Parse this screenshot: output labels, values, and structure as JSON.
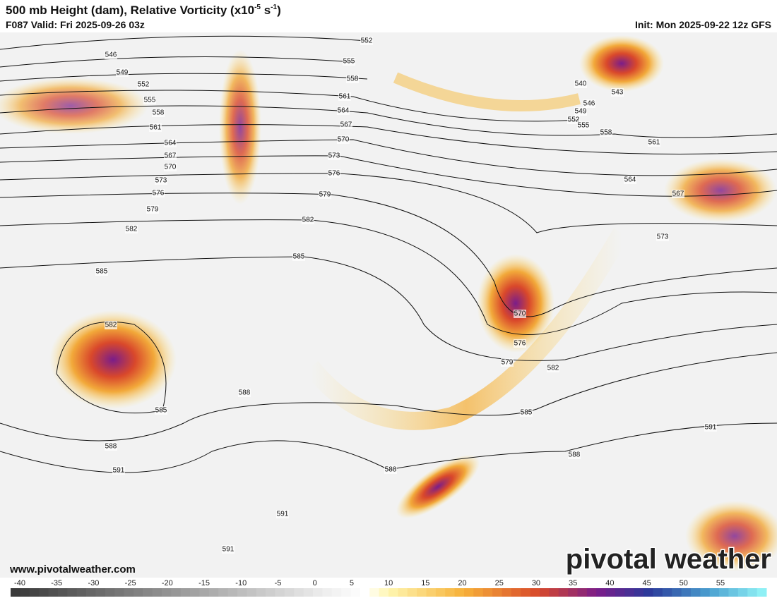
{
  "header": {
    "title": "500 mb Height (dam), Relative Vorticity (x10",
    "title_exp1": "-5",
    "title_mid": " s",
    "title_exp2": "-1",
    "title_end": ")",
    "valid": "F087 Valid: Fri 2025-09-26 03z",
    "init": "Init: Mon 2025-09-22 12z GFS"
  },
  "map": {
    "contour_labels": [
      546,
      549,
      552,
      555,
      558,
      561,
      564,
      567,
      570,
      573,
      576,
      579,
      582,
      585,
      582,
      585,
      588,
      591,
      552,
      555,
      558,
      561,
      564,
      567,
      570,
      573,
      576,
      579,
      582,
      585,
      540,
      543,
      546,
      549,
      552,
      555,
      558,
      561,
      564,
      567,
      573,
      570,
      576,
      579,
      582,
      585,
      588,
      591,
      588,
      588,
      591,
      591
    ]
  },
  "footer": {
    "url": "www.pivotalweather.com",
    "brand": "pivotal weather"
  },
  "colorbar": {
    "ticks": [
      -40,
      -35,
      -30,
      -25,
      -20,
      -15,
      -10,
      -5,
      0,
      5,
      10,
      15,
      20,
      25,
      30,
      35,
      40,
      45,
      50,
      55
    ]
  }
}
